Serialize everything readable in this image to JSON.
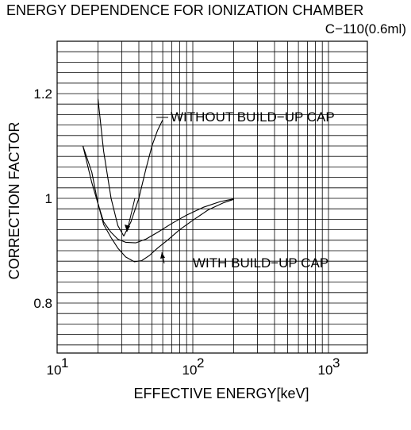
{
  "chart_data": {
    "type": "line",
    "title": "ENERGY DEPENDENCE FOR IONIZATION CHAMBER",
    "subtitle": "C−110(0.6ml)",
    "xlabel": "EFFECTIVE ENERGY[keV]",
    "ylabel": "CORRECTION FACTOR",
    "xscale": "log",
    "xlim": [
      10,
      2000
    ],
    "ylim": [
      0.7,
      1.3
    ],
    "grid": true,
    "x_ticks": [
      {
        "value": 10,
        "base": "10",
        "exp": "1"
      },
      {
        "value": 100,
        "base": "10",
        "exp": "2"
      },
      {
        "value": 1000,
        "base": "10",
        "exp": "3"
      }
    ],
    "y_ticks": [
      {
        "value": 0.8,
        "label": "0.8"
      },
      {
        "value": 1.0,
        "label": "1"
      },
      {
        "value": 1.2,
        "label": "1.2"
      }
    ],
    "series": [
      {
        "name": "WITHOUT BUILD−UP CAP",
        "x": [
          20,
          22,
          25,
          28,
          31,
          35,
          40,
          45,
          50,
          55,
          60
        ],
        "y": [
          1.19,
          1.09,
          1.0,
          0.948,
          0.928,
          0.955,
          1.0,
          1.055,
          1.1,
          1.13,
          1.15
        ]
      },
      {
        "name": "WITH BUILD−UP CAP",
        "x": [
          15.5,
          18,
          20,
          22,
          25,
          28,
          32,
          38,
          45,
          55,
          70,
          90,
          120,
          160,
          200
        ],
        "y": [
          1.1,
          1.05,
          0.99,
          0.955,
          0.935,
          0.922,
          0.916,
          0.915,
          0.922,
          0.935,
          0.952,
          0.968,
          0.983,
          0.994,
          0.999
        ]
      },
      {
        "name": "WITH BUILD−UP CAP",
        "x": [
          15.5,
          18,
          20,
          22,
          25,
          28,
          32,
          37,
          42,
          48,
          55,
          65,
          80,
          100,
          130,
          170,
          200
        ],
        "y": [
          1.1,
          1.03,
          0.99,
          0.95,
          0.925,
          0.905,
          0.888,
          0.879,
          0.881,
          0.891,
          0.905,
          0.92,
          0.94,
          0.958,
          0.978,
          0.992,
          0.998
        ]
      }
    ],
    "annotations": [
      {
        "text": "WITHOUT BUILD−UP CAP"
      },
      {
        "text": "WITH BUILD−UP CAP"
      }
    ]
  }
}
